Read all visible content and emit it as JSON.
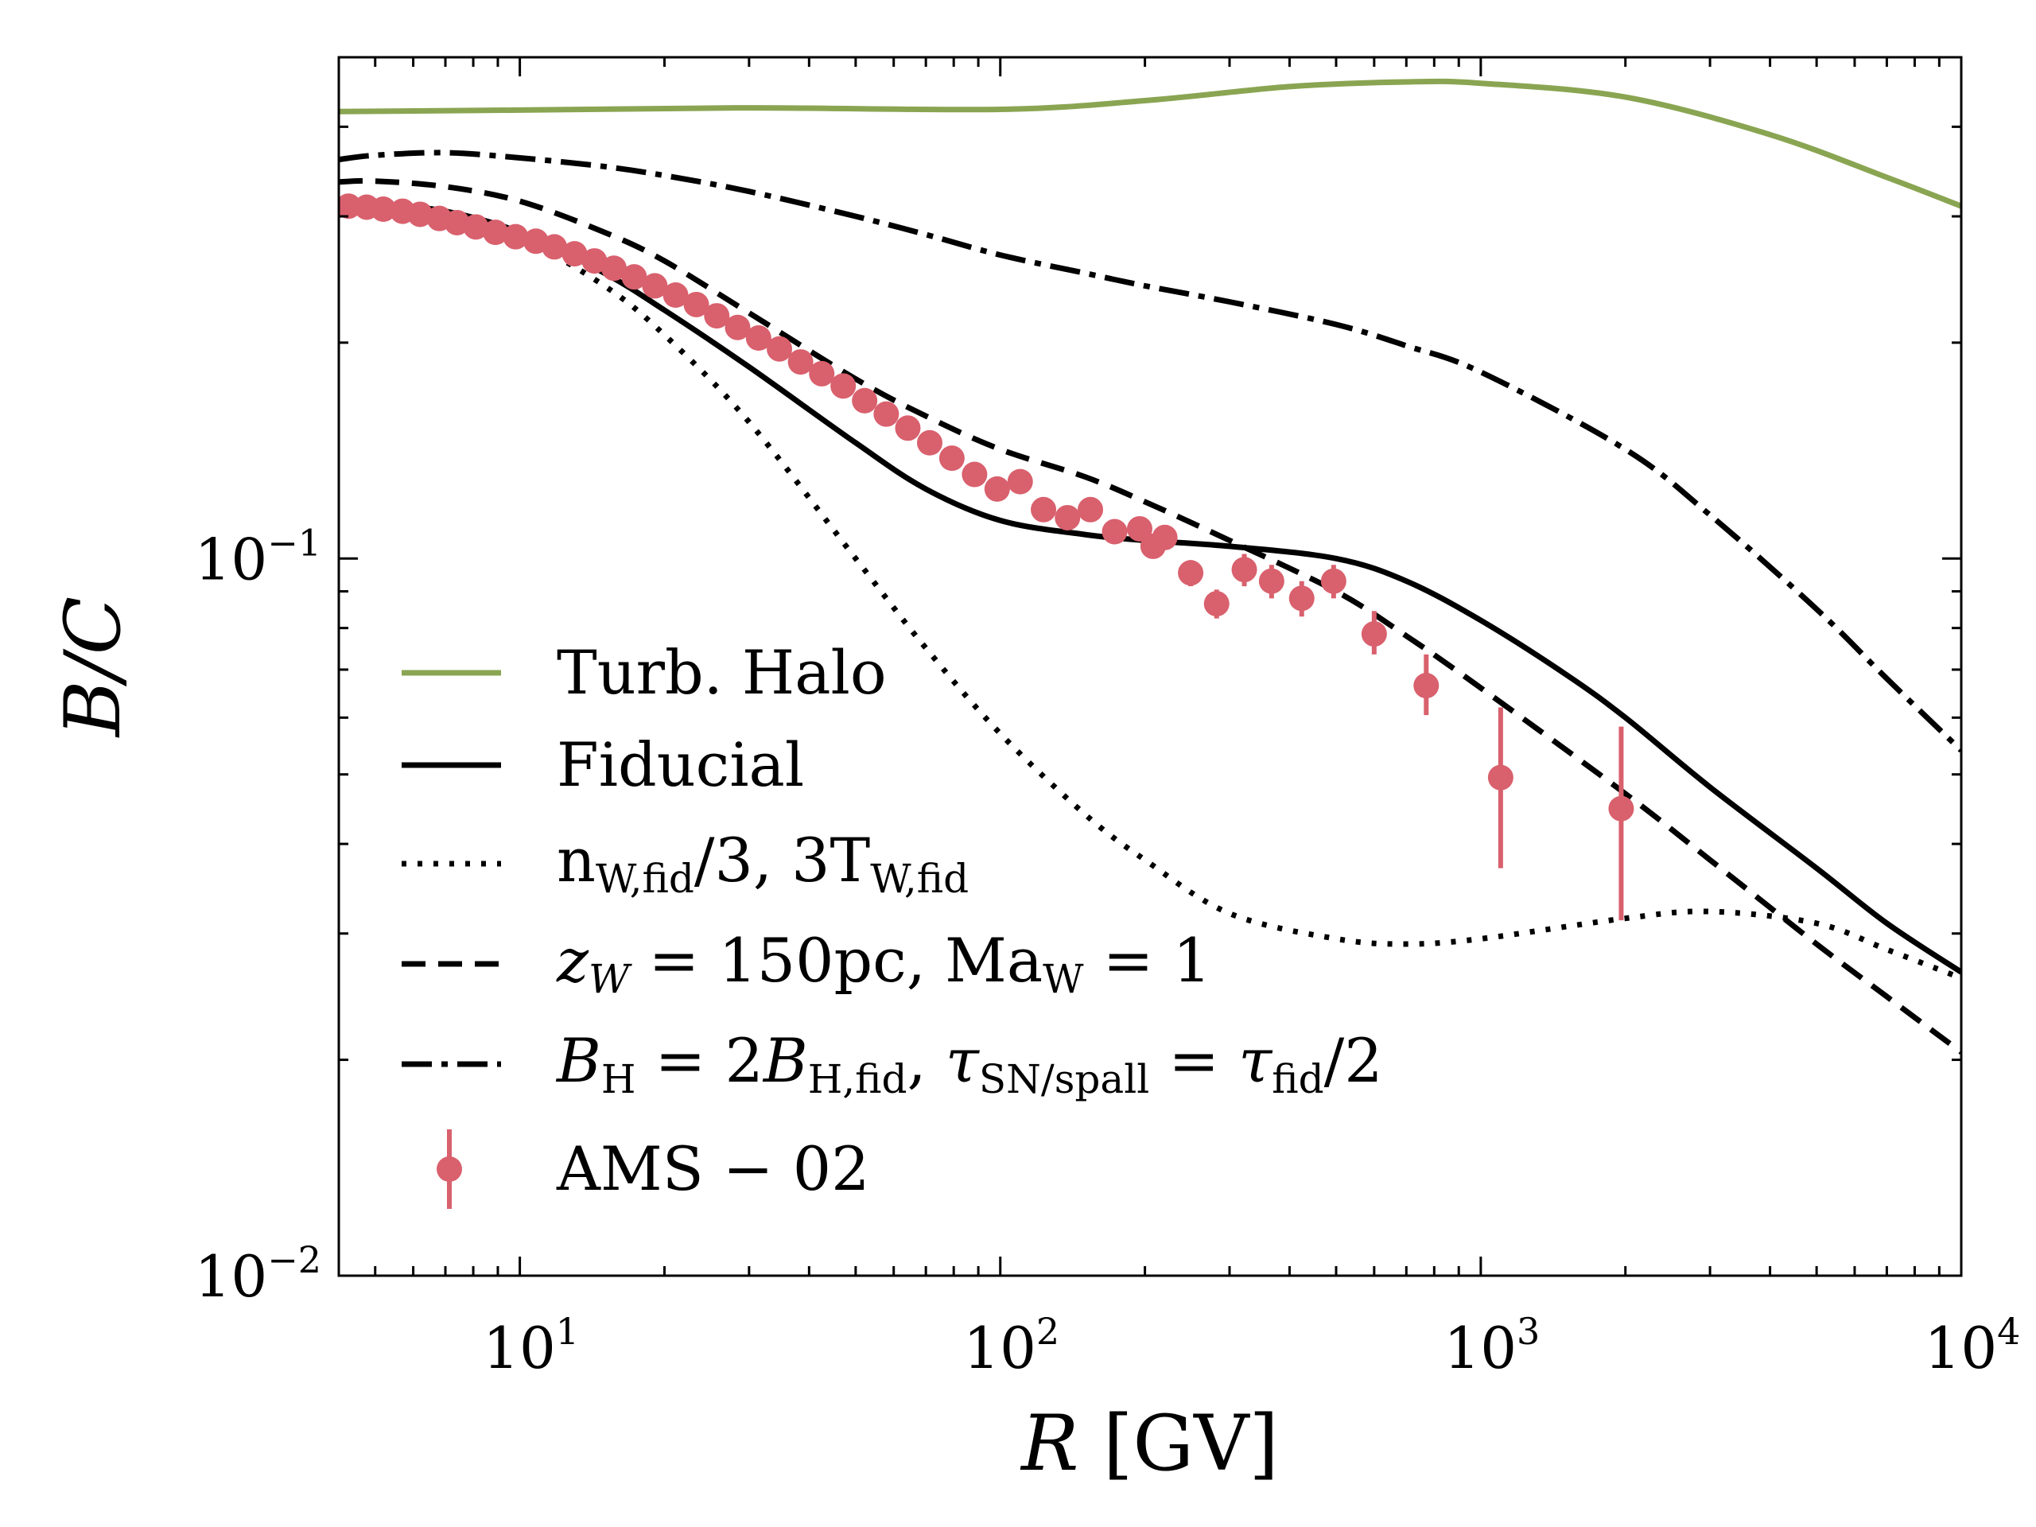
{
  "chart_data": {
    "type": "line",
    "xscale": "log",
    "yscale": "log",
    "xlim": [
      4.2,
      10000
    ],
    "ylim": [
      0.01,
      0.5
    ],
    "xlabel": {
      "main": "R",
      "unit": " [GV]"
    },
    "ylabel": "B/C",
    "xticks": [
      {
        "value": 10,
        "base": "10",
        "exp": "1"
      },
      {
        "value": 100,
        "base": "10",
        "exp": "2"
      },
      {
        "value": 1000,
        "base": "10",
        "exp": "3"
      },
      {
        "value": 10000,
        "base": "10",
        "exp": "4"
      }
    ],
    "yticks": [
      {
        "value": 0.01,
        "base": "10",
        "exp": "−2"
      },
      {
        "value": 0.1,
        "base": "10",
        "exp": "−1"
      }
    ],
    "legend_position": "lower-left",
    "series": [
      {
        "id": "turb-halo",
        "name": "Turb. Halo",
        "color": "#8aa552",
        "dash": "solid",
        "x": [
          4.2,
          10,
          30,
          100,
          200,
          400,
          700,
          1000,
          2000,
          4000,
          7000,
          10000
        ],
        "y": [
          0.42,
          0.422,
          0.425,
          0.423,
          0.435,
          0.455,
          0.462,
          0.46,
          0.44,
          0.39,
          0.34,
          0.31
        ]
      },
      {
        "id": "fiducial",
        "name": "Fiducial",
        "color": "#000000",
        "dash": "solid",
        "x": [
          4.2,
          5,
          7,
          10,
          15,
          20,
          30,
          50,
          70,
          100,
          150,
          200,
          300,
          500,
          700,
          1000,
          1500,
          2000,
          3000,
          5000,
          7000,
          10000
        ],
        "y": [
          0.31,
          0.312,
          0.305,
          0.285,
          0.25,
          0.222,
          0.185,
          0.145,
          0.125,
          0.113,
          0.108,
          0.106,
          0.104,
          0.1,
          0.093,
          0.082,
          0.069,
          0.06,
          0.048,
          0.037,
          0.031,
          0.0265
        ]
      },
      {
        "id": "low-n-high-t",
        "name": "n_W,fid/3, 3T_W,fid",
        "color": "#000000",
        "dash": "dotted",
        "x": [
          4.2,
          5,
          7,
          10,
          15,
          20,
          30,
          50,
          70,
          100,
          150,
          200,
          300,
          500,
          700,
          1000,
          2000,
          3000,
          5000,
          7000,
          10000
        ],
        "y": [
          0.31,
          0.31,
          0.3,
          0.28,
          0.24,
          0.205,
          0.155,
          0.1,
          0.075,
          0.057,
          0.044,
          0.038,
          0.032,
          0.0295,
          0.029,
          0.0295,
          0.0315,
          0.0322,
          0.031,
          0.0285,
          0.026
        ]
      },
      {
        "id": "zw-maw",
        "name": "z_W = 150pc, Ma_W = 1",
        "color": "#000000",
        "dash": "dashed",
        "x": [
          4.2,
          5,
          7,
          10,
          15,
          20,
          30,
          50,
          70,
          100,
          150,
          200,
          300,
          500,
          700,
          1000,
          2000,
          3000,
          5000,
          7000,
          10000
        ],
        "y": [
          0.335,
          0.336,
          0.33,
          0.315,
          0.285,
          0.26,
          0.22,
          0.178,
          0.158,
          0.142,
          0.13,
          0.12,
          0.106,
          0.09,
          0.078,
          0.066,
          0.047,
          0.038,
          0.029,
          0.0245,
          0.0205
        ]
      },
      {
        "id": "bh-tau",
        "name": "B_H = 2B_H,fid, τ_SN/spall = τ_fid/2",
        "color": "#000000",
        "dash": "dashdot",
        "x": [
          4.2,
          5,
          7,
          10,
          15,
          20,
          30,
          50,
          70,
          100,
          150,
          200,
          300,
          500,
          700,
          1000,
          2000,
          3000,
          5000,
          7000,
          10000
        ],
        "y": [
          0.36,
          0.365,
          0.368,
          0.362,
          0.352,
          0.342,
          0.325,
          0.3,
          0.283,
          0.265,
          0.25,
          0.24,
          0.228,
          0.212,
          0.198,
          0.182,
          0.142,
          0.115,
          0.085,
          0.068,
          0.054
        ]
      }
    ],
    "errorbar_series": {
      "name": "AMS − 02",
      "color": "#d9606d",
      "points": [
        {
          "x": 4.4,
          "y": 0.31
        },
        {
          "x": 4.8,
          "y": 0.309
        },
        {
          "x": 5.2,
          "y": 0.307
        },
        {
          "x": 5.7,
          "y": 0.305
        },
        {
          "x": 6.2,
          "y": 0.302
        },
        {
          "x": 6.8,
          "y": 0.298
        },
        {
          "x": 7.4,
          "y": 0.294
        },
        {
          "x": 8.1,
          "y": 0.29
        },
        {
          "x": 8.9,
          "y": 0.285
        },
        {
          "x": 9.8,
          "y": 0.281
        },
        {
          "x": 10.8,
          "y": 0.277
        },
        {
          "x": 11.8,
          "y": 0.272
        },
        {
          "x": 13,
          "y": 0.266
        },
        {
          "x": 14.3,
          "y": 0.26
        },
        {
          "x": 15.7,
          "y": 0.254
        },
        {
          "x": 17.3,
          "y": 0.247
        },
        {
          "x": 19.1,
          "y": 0.24
        },
        {
          "x": 21.1,
          "y": 0.233
        },
        {
          "x": 23.3,
          "y": 0.226
        },
        {
          "x": 25.7,
          "y": 0.218
        },
        {
          "x": 28.4,
          "y": 0.21
        },
        {
          "x": 31.4,
          "y": 0.203
        },
        {
          "x": 34.7,
          "y": 0.196
        },
        {
          "x": 38.4,
          "y": 0.188
        },
        {
          "x": 42.5,
          "y": 0.181
        },
        {
          "x": 47.1,
          "y": 0.174
        },
        {
          "x": 52.2,
          "y": 0.166
        },
        {
          "x": 57.9,
          "y": 0.159
        },
        {
          "x": 64.2,
          "y": 0.152
        },
        {
          "x": 71.3,
          "y": 0.145
        },
        {
          "x": 79.3,
          "y": 0.138
        },
        {
          "x": 88.4,
          "y": 0.131
        },
        {
          "x": 98.5,
          "y": 0.125
        },
        {
          "x": 110,
          "y": 0.128
        },
        {
          "x": 123,
          "y": 0.117
        },
        {
          "x": 138,
          "y": 0.114
        },
        {
          "x": 154,
          "y": 0.117
        },
        {
          "x": 173,
          "y": 0.109
        },
        {
          "x": 195,
          "y": 0.11
        },
        {
          "x": 220,
          "y": 0.107
        },
        {
          "x": 208,
          "y": 0.104
        },
        {
          "x": 249,
          "y": 0.0955,
          "err_lo": 0.004,
          "err_hi": 0.004
        },
        {
          "x": 282,
          "y": 0.0865,
          "err_lo": 0.004,
          "err_hi": 0.004
        },
        {
          "x": 322,
          "y": 0.0965,
          "err_lo": 0.005,
          "err_hi": 0.005
        },
        {
          "x": 367,
          "y": 0.093,
          "err_lo": 0.005,
          "err_hi": 0.005
        },
        {
          "x": 424,
          "y": 0.088,
          "err_lo": 0.005,
          "err_hi": 0.005
        },
        {
          "x": 494,
          "y": 0.093,
          "err_lo": 0.005,
          "err_hi": 0.005
        },
        {
          "x": 600,
          "y": 0.0785,
          "err_lo": 0.005,
          "err_hi": 0.006
        },
        {
          "x": 770,
          "y": 0.0665,
          "err_lo": 0.006,
          "err_hi": 0.007
        },
        {
          "x": 1100,
          "y": 0.0495,
          "err_lo": 0.0125,
          "err_hi": 0.0125
        },
        {
          "x": 1960,
          "y": 0.0448,
          "err_lo": 0.0135,
          "err_hi": 0.0135
        }
      ]
    }
  },
  "legend": [
    {
      "id": "turb-halo",
      "label": "Turb. Halo"
    },
    {
      "id": "fiducial",
      "label": "Fiducial"
    },
    {
      "id": "low-n-high-t",
      "label": "n_W,fid/3, 3T_W,fid"
    },
    {
      "id": "zw-maw",
      "label": "z_W = 150pc,  Ma_W = 1"
    },
    {
      "id": "bh-tau",
      "label": "B_H = 2B_H,fid,  τ_SN/spall = τ_fid/2"
    },
    {
      "id": "ams",
      "label": "AMS − 02"
    }
  ]
}
